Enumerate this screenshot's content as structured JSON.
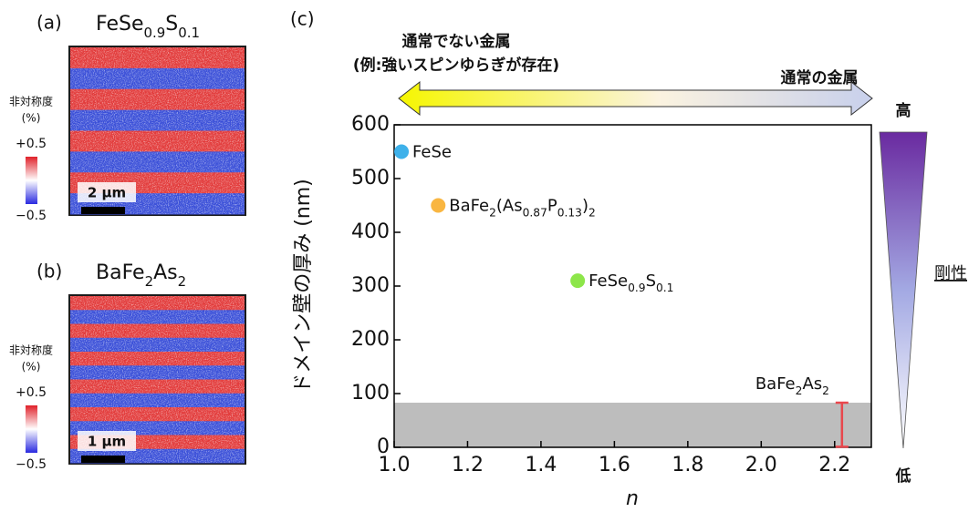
{
  "panels": [
    {
      "label": "(a)",
      "title": [
        {
          "t": "FeSe"
        },
        {
          "t": "0.9",
          "sub": true
        },
        {
          "t": "S"
        },
        {
          "t": "0.1",
          "sub": true
        }
      ],
      "colorbar_title": "非対称度",
      "colorbar_unit": "(%)",
      "colorbar_max": "+0.5",
      "colorbar_min": "−0.5",
      "scale_bar": "2 µm",
      "stripes": 8
    },
    {
      "label": "(b)",
      "title": [
        {
          "t": "BaFe"
        },
        {
          "t": "2",
          "sub": true
        },
        {
          "t": "As"
        },
        {
          "t": "2",
          "sub": true
        }
      ],
      "colorbar_title": "非対称度",
      "colorbar_unit": "(%)",
      "colorbar_max": "+0.5",
      "colorbar_min": "−0.5",
      "scale_bar": "1 µm",
      "stripes": 12
    }
  ],
  "chart_data": {
    "type": "scatter",
    "panel_label": "(c)",
    "xlabel": "n",
    "ylabel": "ドメイン壁の厚み (nm)",
    "xlim": [
      1,
      2.3
    ],
    "ylim": [
      0,
      600
    ],
    "xticks": [
      {
        "value": 1,
        "label": "1.0"
      },
      1.2,
      1.4,
      1.6,
      1.8,
      {
        "value": 2,
        "label": "2.0"
      },
      2.2
    ],
    "yticks": [
      0,
      100,
      200,
      300,
      400,
      500,
      600
    ],
    "shade_top": 83,
    "shade_color": "#bdbdbd",
    "series": [
      {
        "name": [
          {
            "t": "FeSe"
          }
        ],
        "color": "#3eb1ea",
        "x": [
          1.02
        ],
        "values": [
          550
        ]
      },
      {
        "name": [
          {
            "t": "BaFe"
          },
          {
            "t": "2",
            "sub": true
          },
          {
            "t": "(As"
          },
          {
            "t": "0.87",
            "sub": true
          },
          {
            "t": "P"
          },
          {
            "t": "0.13",
            "sub": true
          },
          {
            "t": ")"
          },
          {
            "t": "2",
            "sub": true
          }
        ],
        "color": "#f9b641",
        "x": [
          1.12
        ],
        "values": [
          450
        ]
      },
      {
        "name": [
          {
            "t": "FeSe"
          },
          {
            "t": "0.9",
            "sub": true
          },
          {
            "t": "S"
          },
          {
            "t": "0.1",
            "sub": true
          }
        ],
        "color": "#8de64a",
        "x": [
          1.5
        ],
        "values": [
          310
        ]
      },
      {
        "name": [
          {
            "t": "BaFe"
          },
          {
            "t": "2",
            "sub": true
          },
          {
            "t": "As"
          },
          {
            "t": "2",
            "sub": true
          }
        ],
        "color": "#e8474d",
        "type": "errorbar",
        "x": [
          2.22
        ],
        "values": [
          42
        ],
        "errors": [
          41
        ]
      }
    ],
    "top_left": "通常でない金属",
    "top_left_note": "(例:強いスピンゆらぎが存在)",
    "top_right": "通常の金属",
    "rigidity_high": "高",
    "rigidity_label": "剛性",
    "rigidity_low": "低"
  }
}
